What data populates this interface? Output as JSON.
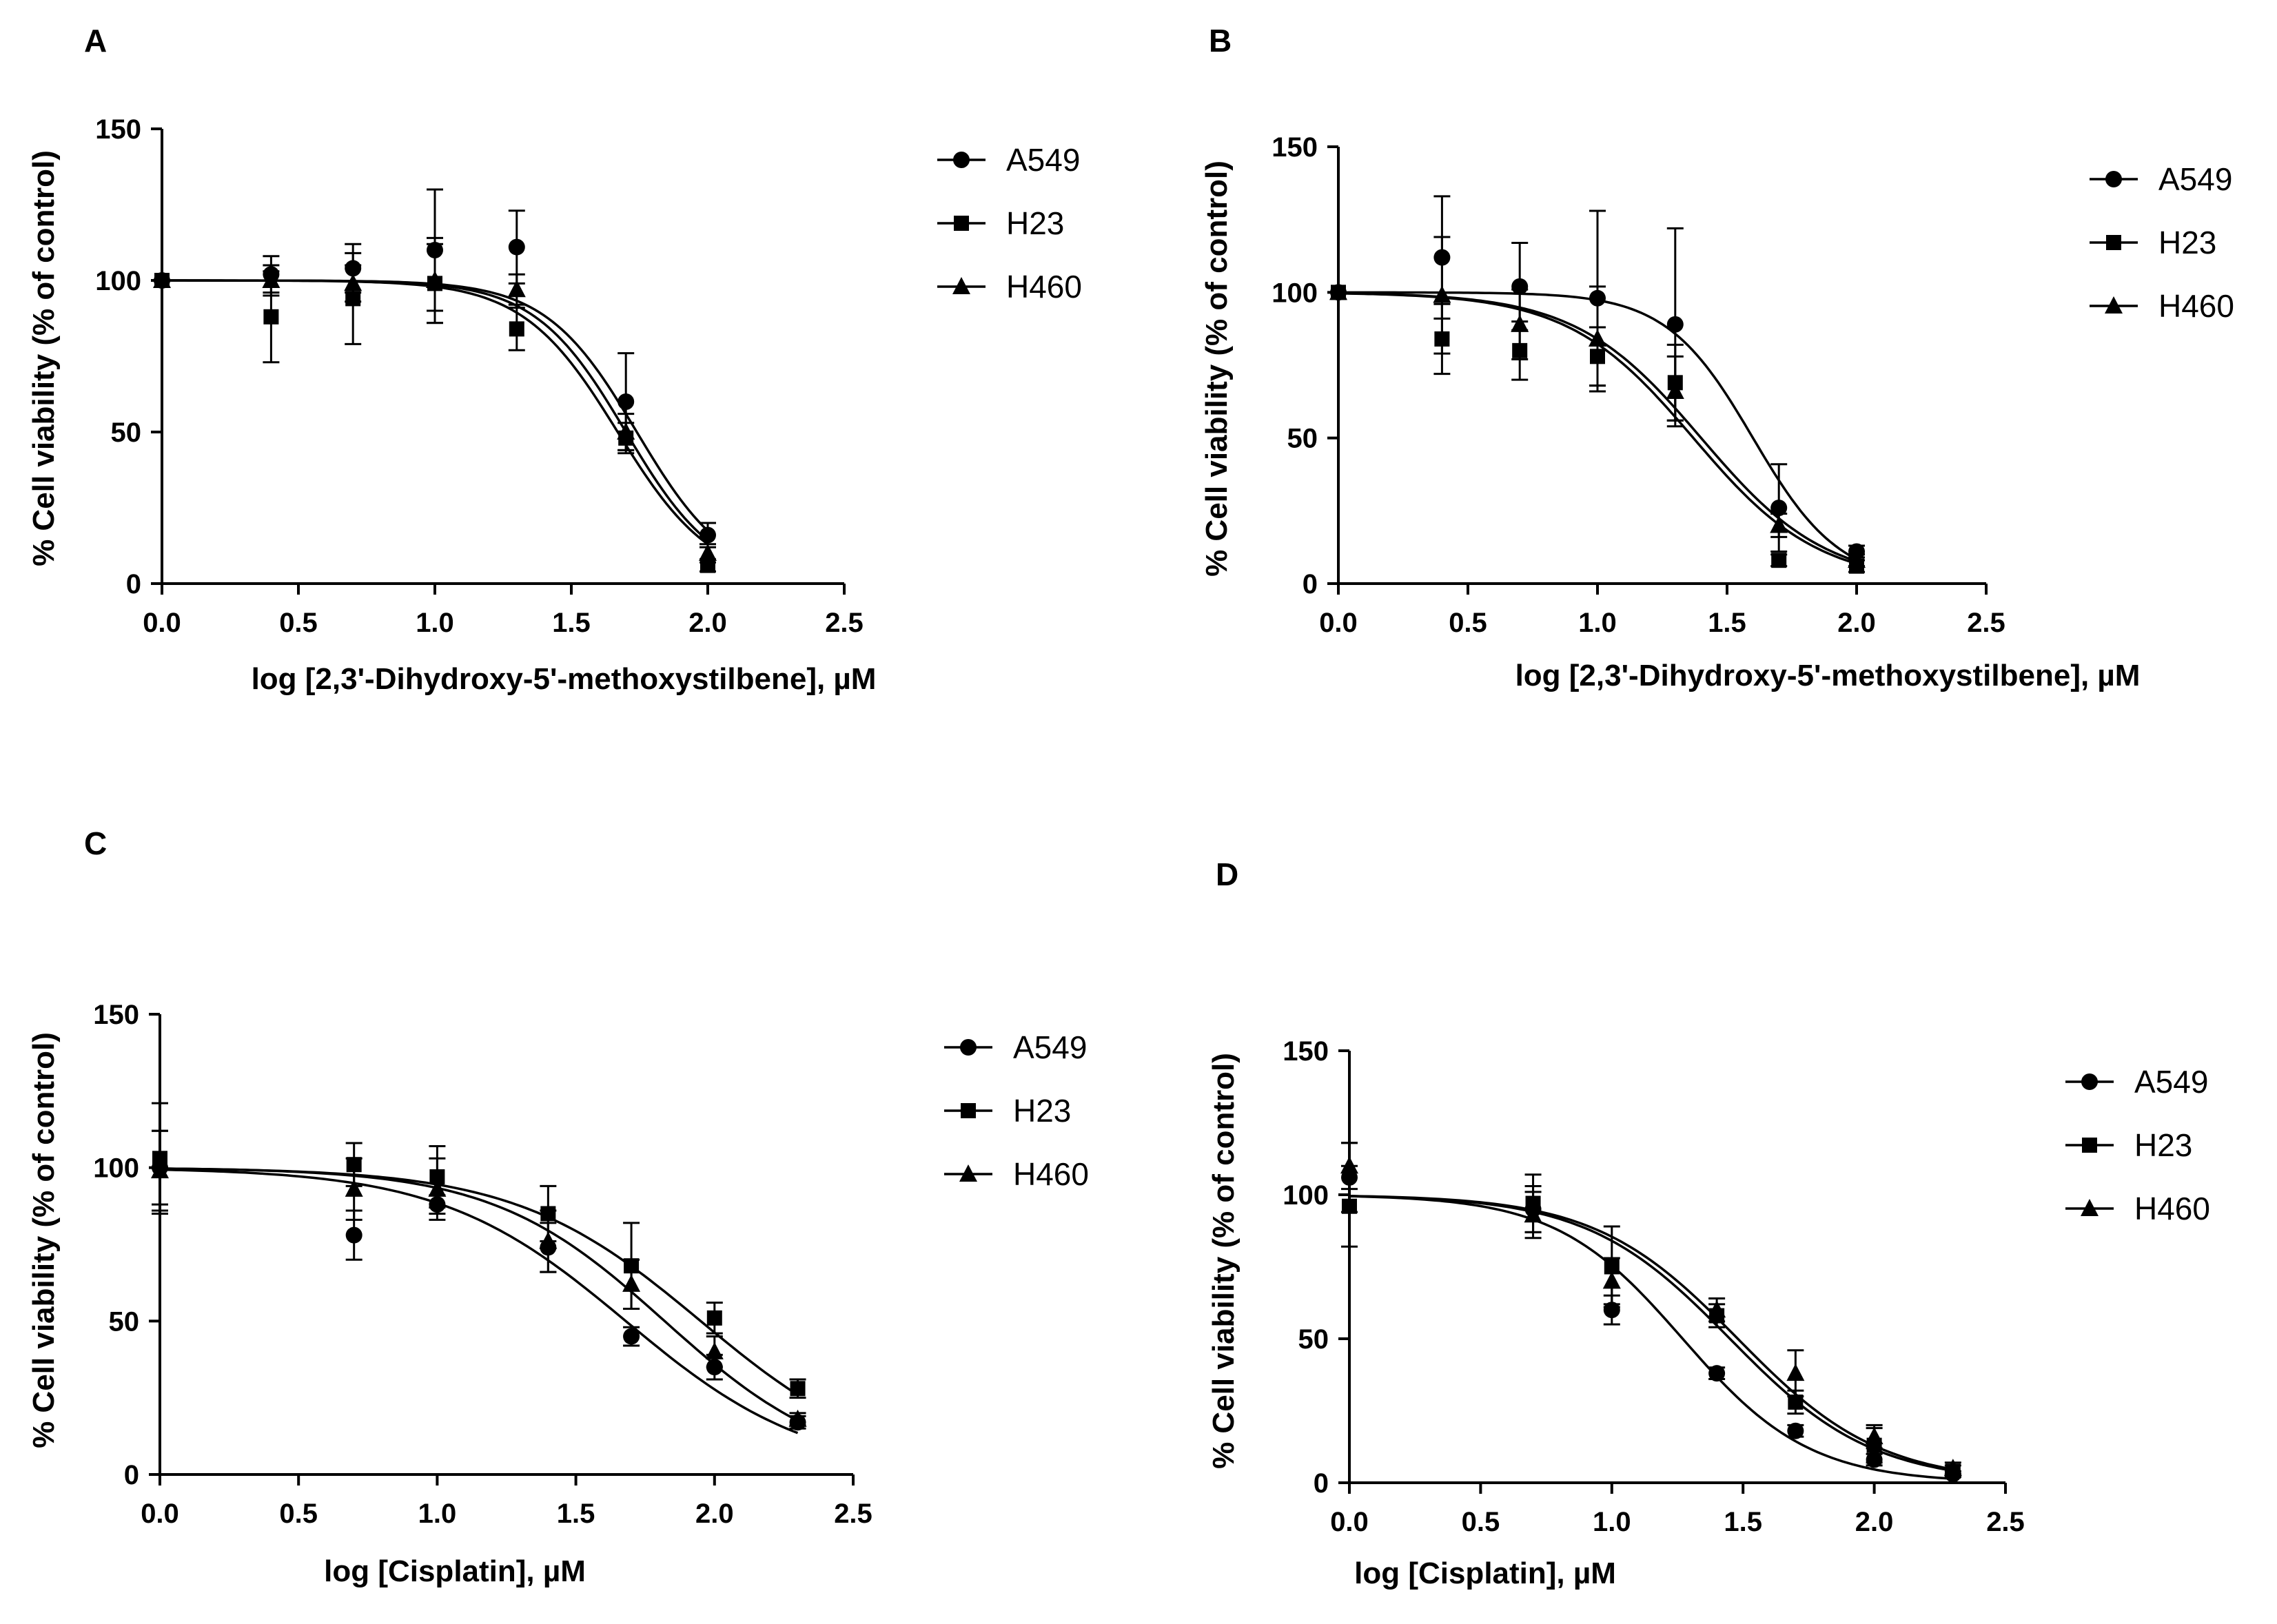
{
  "chart_data": [
    {
      "panel": "A",
      "type": "scatter",
      "xlabel": "log [2,3'-Dihydroxy-5'-methoxystilbene], µM",
      "ylabel": "% Cell viability (% of control)",
      "xlim": [
        0,
        2.5
      ],
      "ylim": [
        0,
        150
      ],
      "xticks": [
        "0.0",
        "0.5",
        "1.0",
        "1.5",
        "2.0",
        "2.5"
      ],
      "yticks": [
        "0",
        "50",
        "100",
        "150"
      ],
      "legend": [
        "A549",
        "H23",
        "H460"
      ],
      "series": [
        {
          "name": "A549",
          "marker": "circle",
          "ic50": 1.74,
          "hill": 2.6,
          "x": [
            0,
            0.4,
            0.7,
            1.0,
            1.3,
            1.7,
            2.0
          ],
          "y": [
            100,
            102,
            104,
            110,
            111,
            60,
            16
          ],
          "err": [
            0,
            6,
            8,
            20,
            12,
            16,
            4
          ]
        },
        {
          "name": "H23",
          "marker": "square",
          "ic50": 1.67,
          "hill": 2.5,
          "x": [
            0,
            0.4,
            0.7,
            1.0,
            1.3,
            1.7,
            2.0
          ],
          "y": [
            100,
            88,
            94,
            99,
            84,
            48,
            6
          ],
          "err": [
            0,
            15,
            15,
            13,
            7,
            5,
            2
          ]
        },
        {
          "name": "H460",
          "marker": "triangle",
          "ic50": 1.7,
          "hill": 2.6,
          "x": [
            0,
            0.4,
            0.7,
            1.0,
            1.3,
            1.7,
            2.0
          ],
          "y": [
            100,
            100,
            99,
            100,
            97,
            50,
            10
          ],
          "err": [
            0,
            5,
            6,
            14,
            5,
            6,
            3
          ]
        }
      ]
    },
    {
      "panel": "B",
      "type": "scatter",
      "xlabel": "log [2,3'-Dihydroxy-5'-methoxystilbene], µM",
      "ylabel": "% Cell viability (% of control)",
      "xlim": [
        0,
        2.5
      ],
      "ylim": [
        0,
        150
      ],
      "xticks": [
        "0.0",
        "0.5",
        "1.0",
        "1.5",
        "2.0",
        "2.5"
      ],
      "yticks": [
        "0",
        "50",
        "100",
        "150"
      ],
      "legend": [
        "A549",
        "H23",
        "H460"
      ],
      "series": [
        {
          "name": "A549",
          "marker": "circle",
          "ic50": 1.6,
          "hill": 2.6,
          "x": [
            0,
            0.4,
            0.7,
            1.0,
            1.3,
            1.7,
            2.0
          ],
          "y": [
            100,
            112,
            102,
            98,
            89,
            26,
            11
          ],
          "err": [
            0,
            21,
            15,
            30,
            33,
            15,
            2
          ]
        },
        {
          "name": "H23",
          "marker": "square",
          "ic50": 1.37,
          "hill": 1.8,
          "x": [
            0,
            0.4,
            0.7,
            1.0,
            1.3,
            1.7,
            2.0
          ],
          "y": [
            100,
            84,
            80,
            78,
            69,
            8,
            6
          ],
          "err": [
            0,
            12,
            10,
            10,
            13,
            2,
            2
          ]
        },
        {
          "name": "H460",
          "marker": "triangle",
          "ic50": 1.4,
          "hill": 1.8,
          "x": [
            0,
            0.4,
            0.7,
            1.0,
            1.3,
            1.7,
            2.0
          ],
          "y": [
            100,
            99,
            89,
            84,
            66,
            20,
            8
          ],
          "err": [
            0,
            20,
            12,
            18,
            12,
            4,
            2
          ]
        }
      ]
    },
    {
      "panel": "C",
      "type": "scatter",
      "xlabel": "log [Cisplatin], µM",
      "ylabel": "% Cell viability (% of control)",
      "xlim": [
        0,
        2.5
      ],
      "ylim": [
        0,
        150
      ],
      "xticks": [
        "0.0",
        "0.5",
        "1.0",
        "1.5",
        "2.0",
        "2.5"
      ],
      "yticks": [
        "0",
        "50",
        "100",
        "150"
      ],
      "legend": [
        "A549",
        "H23",
        "H460"
      ],
      "series": [
        {
          "name": "A549",
          "marker": "circle",
          "ic50": 1.68,
          "hill": 1.3,
          "x": [
            0,
            0.7,
            1.0,
            1.4,
            1.7,
            2.0,
            2.3
          ],
          "y": [
            100,
            78,
            88,
            74,
            45,
            35,
            17
          ],
          "err": [
            12,
            8,
            3,
            8,
            3,
            4,
            2
          ]
        },
        {
          "name": "H23",
          "marker": "square",
          "ic50": 1.95,
          "hill": 1.3,
          "x": [
            0,
            0.7,
            1.0,
            1.4,
            1.7,
            2.0,
            2.3
          ],
          "y": [
            103,
            101,
            97,
            85,
            68,
            51,
            28
          ],
          "err": [
            18,
            7,
            10,
            9,
            14,
            5,
            3
          ]
        },
        {
          "name": "H460",
          "marker": "triangle",
          "ic50": 1.82,
          "hill": 1.4,
          "x": [
            0,
            0.7,
            1.0,
            1.4,
            1.7,
            2.0,
            2.3
          ],
          "y": [
            99,
            93,
            93,
            76,
            62,
            40,
            18
          ],
          "err": [
            13,
            10,
            10,
            10,
            8,
            5,
            2
          ]
        }
      ]
    },
    {
      "panel": "D",
      "type": "scatter",
      "xlabel": "log [Cisplatin], µM",
      "ylabel": "% Cell viability (% of control)",
      "xlim": [
        0,
        2.5
      ],
      "ylim": [
        0,
        150
      ],
      "xticks": [
        "0.0",
        "0.5",
        "1.0",
        "1.5",
        "2.0",
        "2.5"
      ],
      "yticks": [
        "0",
        "50",
        "100",
        "150"
      ],
      "legend": [
        "A549",
        "H23",
        "H460"
      ],
      "series": [
        {
          "name": "A549",
          "marker": "circle",
          "ic50": 1.27,
          "hill": 1.8,
          "x": [
            0,
            0.7,
            1.0,
            1.4,
            1.7,
            2.0,
            2.3
          ],
          "y": [
            106,
            95,
            60,
            38,
            18,
            8,
            3
          ],
          "err": [
            12,
            8,
            5,
            2,
            2,
            2,
            1
          ]
        },
        {
          "name": "H23",
          "marker": "square",
          "ic50": 1.45,
          "hill": 1.6,
          "x": [
            0,
            0.7,
            1.0,
            1.4,
            1.7,
            2.0,
            2.3
          ],
          "y": [
            96,
            97,
            75,
            58,
            28,
            13,
            4
          ],
          "err": [
            14,
            10,
            14,
            4,
            4,
            6,
            2
          ]
        },
        {
          "name": "H460",
          "marker": "triangle",
          "ic50": 1.48,
          "hill": 1.6,
          "x": [
            0,
            0.7,
            1.0,
            1.4,
            1.7,
            2.0,
            2.3
          ],
          "y": [
            110,
            93,
            70,
            60,
            38,
            16,
            5
          ],
          "err": [
            8,
            8,
            8,
            4,
            8,
            4,
            2
          ]
        }
      ]
    }
  ]
}
